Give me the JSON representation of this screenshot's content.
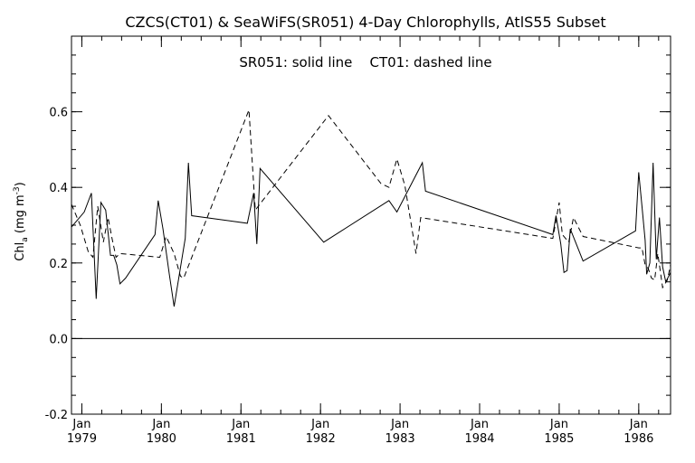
{
  "chart_data": {
    "type": "line",
    "title": "CZCS(CT01) & SeaWiFS(SR051) 4-Day Chlorophylls, AtlS55 Subset",
    "annotation": "SR051: solid line    CT01: dashed line",
    "ylabel_main": "Chl",
    "ylabel_sub": "a",
    "ylabel_unit": " (mg m",
    "ylabel_exp": "-3",
    "ylabel_close": ")",
    "xlim": [
      1978.87,
      1986.4
    ],
    "ylim": [
      -0.2,
      0.8
    ],
    "y_ticks": [
      -0.2,
      0.0,
      0.2,
      0.4,
      0.6
    ],
    "y_tick_labels": [
      "-0.2",
      "0.0",
      "0.2",
      "0.4",
      "0.6"
    ],
    "y_minor_step": 0.05,
    "x_ticks": [
      {
        "x": 1979.0,
        "month": "Jan",
        "year": "1979"
      },
      {
        "x": 1980.0,
        "month": "Jan",
        "year": "1980"
      },
      {
        "x": 1981.0,
        "month": "Jan",
        "year": "1981"
      },
      {
        "x": 1982.0,
        "month": "Jan",
        "year": "1982"
      },
      {
        "x": 1983.0,
        "month": "Jan",
        "year": "1983"
      },
      {
        "x": 1984.0,
        "month": "Jan",
        "year": "1984"
      },
      {
        "x": 1985.0,
        "month": "Jan",
        "year": "1985"
      },
      {
        "x": 1986.0,
        "month": "Jan",
        "year": "1986"
      }
    ],
    "x_minor_step": 0.25,
    "zero_line": 0.0,
    "grid": false,
    "series": [
      {
        "name": "SR051",
        "style": "solid",
        "points": [
          [
            1978.87,
            0.295
          ],
          [
            1979.03,
            0.335
          ],
          [
            1979.12,
            0.385
          ],
          [
            1979.18,
            0.105
          ],
          [
            1979.24,
            0.36
          ],
          [
            1979.3,
            0.34
          ],
          [
            1979.36,
            0.22
          ],
          [
            1979.4,
            0.22
          ],
          [
            1979.44,
            0.195
          ],
          [
            1979.48,
            0.145
          ],
          [
            1979.55,
            0.16
          ],
          [
            1979.92,
            0.275
          ],
          [
            1979.96,
            0.365
          ],
          [
            1980.02,
            0.29
          ],
          [
            1980.1,
            0.17
          ],
          [
            1980.16,
            0.085
          ],
          [
            1980.3,
            0.265
          ],
          [
            1980.34,
            0.465
          ],
          [
            1980.38,
            0.325
          ],
          [
            1981.08,
            0.305
          ],
          [
            1981.16,
            0.385
          ],
          [
            1981.2,
            0.25
          ],
          [
            1981.24,
            0.45
          ],
          [
            1982.04,
            0.255
          ],
          [
            1982.86,
            0.365
          ],
          [
            1982.96,
            0.335
          ],
          [
            1983.28,
            0.465
          ],
          [
            1983.32,
            0.39
          ],
          [
            1984.92,
            0.275
          ],
          [
            1984.96,
            0.325
          ],
          [
            1985.02,
            0.25
          ],
          [
            1985.06,
            0.175
          ],
          [
            1985.1,
            0.18
          ],
          [
            1985.14,
            0.29
          ],
          [
            1985.3,
            0.205
          ],
          [
            1985.96,
            0.285
          ],
          [
            1986.0,
            0.44
          ],
          [
            1986.04,
            0.35
          ],
          [
            1986.08,
            0.26
          ],
          [
            1986.1,
            0.17
          ],
          [
            1986.14,
            0.2
          ],
          [
            1986.18,
            0.465
          ],
          [
            1986.22,
            0.21
          ],
          [
            1986.26,
            0.32
          ],
          [
            1986.3,
            0.19
          ],
          [
            1986.34,
            0.15
          ],
          [
            1986.4,
            0.175
          ]
        ]
      },
      {
        "name": "CT01",
        "style": "dashed",
        "points": [
          [
            1978.87,
            0.355
          ],
          [
            1978.98,
            0.3
          ],
          [
            1979.08,
            0.23
          ],
          [
            1979.14,
            0.215
          ],
          [
            1979.2,
            0.35
          ],
          [
            1979.27,
            0.255
          ],
          [
            1979.33,
            0.32
          ],
          [
            1979.38,
            0.265
          ],
          [
            1979.43,
            0.215
          ],
          [
            1979.48,
            0.225
          ],
          [
            1979.98,
            0.215
          ],
          [
            1980.06,
            0.27
          ],
          [
            1980.16,
            0.225
          ],
          [
            1980.24,
            0.165
          ],
          [
            1980.28,
            0.16
          ],
          [
            1981.1,
            0.605
          ],
          [
            1981.18,
            0.34
          ],
          [
            1982.1,
            0.59
          ],
          [
            1982.76,
            0.41
          ],
          [
            1982.86,
            0.4
          ],
          [
            1982.96,
            0.475
          ],
          [
            1983.06,
            0.405
          ],
          [
            1983.2,
            0.225
          ],
          [
            1983.26,
            0.32
          ],
          [
            1984.92,
            0.265
          ],
          [
            1985.0,
            0.36
          ],
          [
            1985.04,
            0.275
          ],
          [
            1985.12,
            0.255
          ],
          [
            1985.18,
            0.32
          ],
          [
            1985.3,
            0.27
          ],
          [
            1986.0,
            0.24
          ],
          [
            1986.04,
            0.24
          ],
          [
            1986.08,
            0.195
          ],
          [
            1986.12,
            0.185
          ],
          [
            1986.16,
            0.16
          ],
          [
            1986.2,
            0.155
          ],
          [
            1986.24,
            0.225
          ],
          [
            1986.3,
            0.135
          ],
          [
            1986.36,
            0.155
          ],
          [
            1986.4,
            0.195
          ]
        ]
      }
    ]
  }
}
